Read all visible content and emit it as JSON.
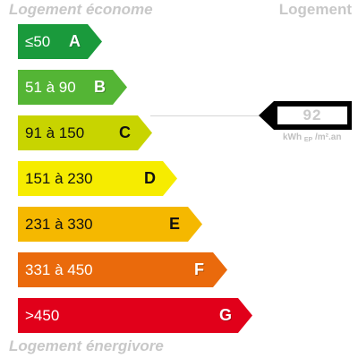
{
  "labels": {
    "top_left": "Logement économe",
    "top_right": "Logement",
    "bottom": "Logement énergivore"
  },
  "classes": [
    {
      "range": "≤50",
      "letter": "A",
      "color": "#1a9a3c"
    },
    {
      "range": "51 à 90",
      "letter": "B",
      "color": "#54b535"
    },
    {
      "range": "91 à 150",
      "letter": "C",
      "color": "#c8d400"
    },
    {
      "range": "151 à 230",
      "letter": "D",
      "color": "#f6ec00"
    },
    {
      "range": "231 à 330",
      "letter": "E",
      "color": "#f5b800"
    },
    {
      "range": "331 à 450",
      "letter": "F",
      "color": "#ea6a0c"
    },
    {
      "range": ">450",
      "letter": "G",
      "color": "#e1001a"
    }
  ],
  "indicator": {
    "value": "92",
    "unit_main": "kWh",
    "unit_sub": "EP",
    "unit_tail": "/m².an",
    "class_index": 2
  }
}
